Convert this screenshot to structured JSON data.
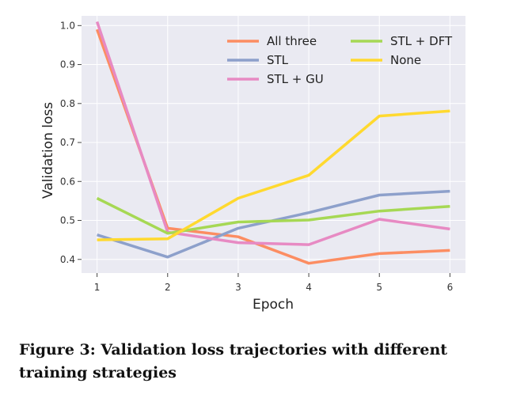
{
  "chart_data": {
    "type": "line",
    "xlabel": "Epoch",
    "ylabel": "Validation loss",
    "x": [
      1,
      2,
      3,
      4,
      5,
      6
    ],
    "xlim": [
      0.78,
      6.22
    ],
    "ylim": [
      0.365,
      1.025
    ],
    "yticks": [
      0.4,
      0.5,
      0.6,
      0.7,
      0.8,
      0.9,
      1.0
    ],
    "ytick_labels": [
      "0.4",
      "0.5",
      "0.6",
      "0.7",
      "0.8",
      "0.9",
      "1.0"
    ],
    "xtick_labels": [
      "1",
      "2",
      "3",
      "4",
      "5",
      "6"
    ],
    "grid": true,
    "legend_position": "top-right",
    "series": [
      {
        "name": "All three",
        "color": "#fc8d62",
        "values": [
          0.99,
          0.48,
          0.458,
          0.39,
          0.415,
          0.423
        ]
      },
      {
        "name": "STL",
        "color": "#8da0cb",
        "values": [
          0.463,
          0.406,
          0.48,
          0.52,
          0.565,
          0.575
        ]
      },
      {
        "name": "STL + GU",
        "color": "#e78ac3",
        "values": [
          1.01,
          0.47,
          0.443,
          0.438,
          0.503,
          0.478
        ]
      },
      {
        "name": "STL + DFT",
        "color": "#a6d854",
        "values": [
          0.557,
          0.467,
          0.496,
          0.501,
          0.524,
          0.536
        ]
      },
      {
        "name": "None",
        "color": "#ffd92f",
        "values": [
          0.45,
          0.453,
          0.557,
          0.616,
          0.768,
          0.781
        ]
      }
    ]
  },
  "caption": "Figure 3: Validation loss trajectories with different training strategies"
}
